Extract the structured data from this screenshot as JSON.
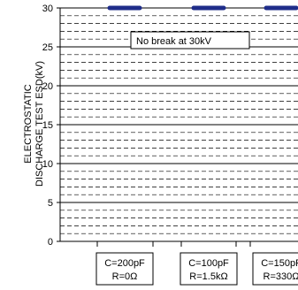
{
  "chart_data": {
    "type": "line",
    "ylabel_lines": [
      "ELECTROSTATIC",
      "DISCHARGE TEST ESD(kV)"
    ],
    "ylim": [
      0,
      30
    ],
    "y_ticks": [
      "0",
      "5",
      "10",
      "15",
      "20",
      "25",
      "30"
    ],
    "grid": "dashed horizontal every 1 kV, solid every 5 kV",
    "categories": [
      {
        "line1": "C=200pF",
        "line2": "R=0Ω"
      },
      {
        "line1": "C=100pF",
        "line2": "R=1.5kΩ"
      },
      {
        "line1": "C=150pF",
        "line2": "R=330Ω"
      }
    ],
    "series": [
      {
        "values": [
          30,
          30,
          30
        ],
        "color": "#1f2d8a"
      }
    ],
    "annotation": "No break at 30kV"
  }
}
